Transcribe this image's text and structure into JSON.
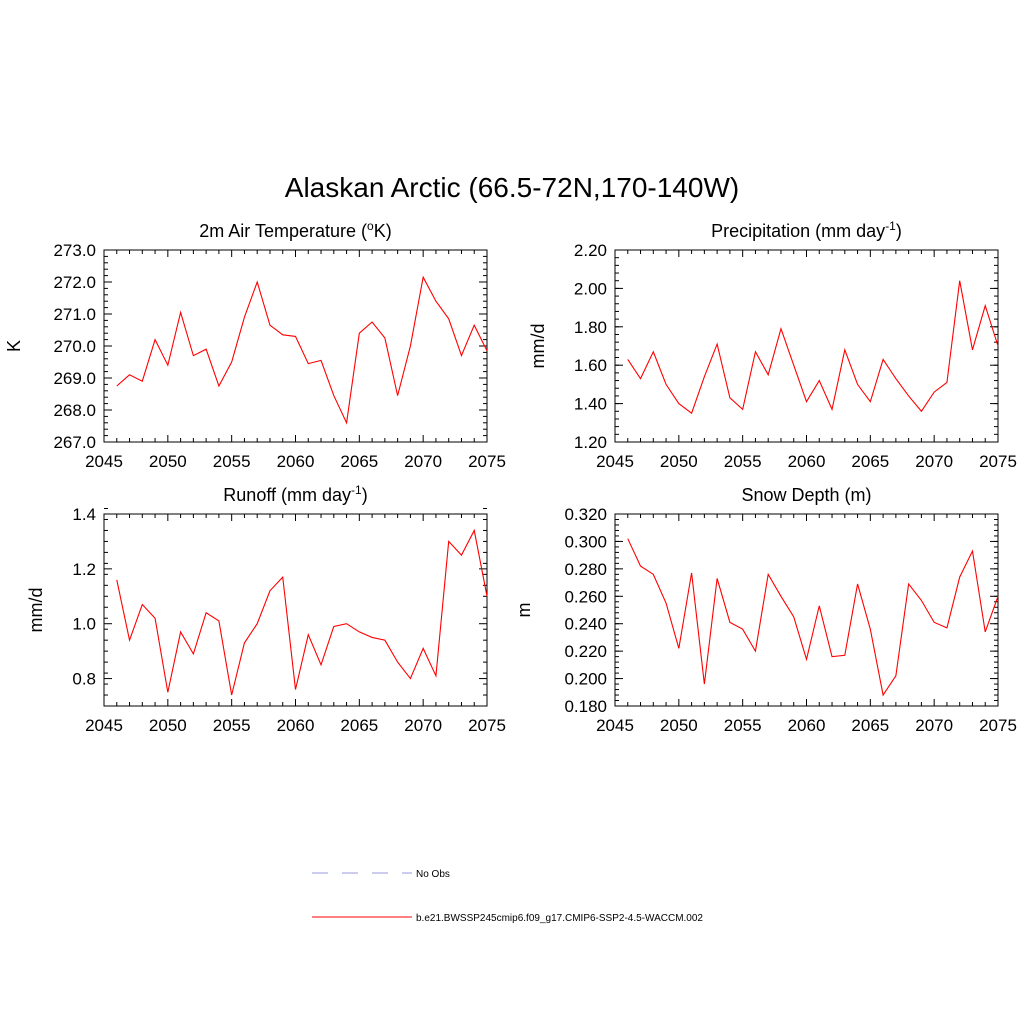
{
  "title": "Alaskan Arctic (66.5-72N,170-140W)",
  "colors": {
    "series": "#ff0000",
    "obs": "#9999dd",
    "axis": "#000000"
  },
  "legend": {
    "items": [
      {
        "label": "No Obs",
        "style": "dashed",
        "color": "#9999dd"
      },
      {
        "label": "b.e21.BWSSP245cmip6.f09_g17.CMIP6-SSP2-4.5-WACCM.002",
        "style": "solid",
        "color": "#ff0000"
      }
    ]
  },
  "chart_data": [
    {
      "type": "line",
      "title": "2m Air Temperature (",
      "title_sup": "o",
      "title_after": "K)",
      "xlabel": "",
      "ylabel": "K",
      "xlim": [
        2045,
        2075
      ],
      "ylim": [
        267.0,
        273.0
      ],
      "xticks": [
        2045,
        2050,
        2055,
        2060,
        2065,
        2070,
        2075
      ],
      "yticks": [
        "267.0",
        "268.0",
        "269.0",
        "270.0",
        "271.0",
        "272.0",
        "273.0"
      ],
      "yminor_step": 0.2,
      "series": [
        {
          "name": "b.e21.BWSSP245cmip6.f09_g17.CMIP6-SSP2-4.5-WACCM.002",
          "x": [
            2046,
            2047,
            2048,
            2049,
            2050,
            2051,
            2052,
            2053,
            2054,
            2055,
            2056,
            2057,
            2058,
            2059,
            2060,
            2061,
            2062,
            2063,
            2064,
            2065,
            2066,
            2067,
            2068,
            2069,
            2070,
            2071,
            2072,
            2073,
            2074,
            2075
          ],
          "values": [
            268.75,
            269.1,
            268.9,
            270.2,
            269.4,
            271.05,
            269.7,
            269.9,
            268.75,
            269.5,
            270.9,
            272.0,
            270.65,
            270.35,
            270.3,
            269.45,
            269.55,
            268.45,
            267.6,
            270.4,
            270.75,
            270.25,
            268.45,
            270.0,
            272.15,
            271.4,
            270.85,
            269.7,
            270.65,
            269.85
          ]
        }
      ]
    },
    {
      "type": "line",
      "title": "Precipitation (mm day",
      "title_sup": "-1",
      "title_after": ")",
      "xlabel": "",
      "ylabel": "mm/d",
      "xlim": [
        2045,
        2075
      ],
      "ylim": [
        1.2,
        2.2
      ],
      "xticks": [
        2045,
        2050,
        2055,
        2060,
        2065,
        2070,
        2075
      ],
      "yticks": [
        "1.20",
        "1.40",
        "1.60",
        "1.80",
        "2.00",
        "2.20"
      ],
      "yminor_step": 0.04,
      "series": [
        {
          "name": "b.e21.BWSSP245cmip6.f09_g17.CMIP6-SSP2-4.5-WACCM.002",
          "x": [
            2046,
            2047,
            2048,
            2049,
            2050,
            2051,
            2052,
            2053,
            2054,
            2055,
            2056,
            2057,
            2058,
            2059,
            2060,
            2061,
            2062,
            2063,
            2064,
            2065,
            2066,
            2067,
            2068,
            2069,
            2070,
            2071,
            2072,
            2073,
            2074,
            2075
          ],
          "values": [
            1.63,
            1.53,
            1.67,
            1.5,
            1.4,
            1.35,
            1.54,
            1.71,
            1.43,
            1.37,
            1.67,
            1.55,
            1.79,
            1.6,
            1.41,
            1.52,
            1.37,
            1.68,
            1.5,
            1.41,
            1.63,
            1.53,
            1.44,
            1.36,
            1.46,
            1.51,
            2.04,
            1.68,
            1.91,
            1.7
          ]
        }
      ]
    },
    {
      "type": "line",
      "title": "Runoff (mm day",
      "title_sup": "-1",
      "title_after": ")",
      "xlabel": "",
      "ylabel": "mm/d",
      "xlim": [
        2045,
        2075
      ],
      "ylim": [
        0.7,
        1.4
      ],
      "xticks": [
        2045,
        2050,
        2055,
        2060,
        2065,
        2070,
        2075
      ],
      "yticks": [
        "0.8",
        "1.0",
        "1.2",
        "1.4"
      ],
      "ytick_values": [
        0.8,
        1.0,
        1.2,
        1.4
      ],
      "yminor_step": 0.04,
      "series": [
        {
          "name": "b.e21.BWSSP245cmip6.f09_g17.CMIP6-SSP2-4.5-WACCM.002",
          "x": [
            2046,
            2047,
            2048,
            2049,
            2050,
            2051,
            2052,
            2053,
            2054,
            2055,
            2056,
            2057,
            2058,
            2059,
            2060,
            2061,
            2062,
            2063,
            2064,
            2065,
            2066,
            2067,
            2068,
            2069,
            2070,
            2071,
            2072,
            2073,
            2074,
            2075
          ],
          "values": [
            1.16,
            0.94,
            1.07,
            1.02,
            0.75,
            0.97,
            0.89,
            1.04,
            1.01,
            0.74,
            0.93,
            1.0,
            1.12,
            1.17,
            0.76,
            0.96,
            0.85,
            0.99,
            1.0,
            0.97,
            0.95,
            0.94,
            0.86,
            0.8,
            0.91,
            0.81,
            1.3,
            1.25,
            1.34,
            1.1
          ]
        }
      ]
    },
    {
      "type": "line",
      "title": "Snow Depth (m)",
      "title_sup": "",
      "title_after": "",
      "xlabel": "",
      "ylabel": "m",
      "xlim": [
        2045,
        2075
      ],
      "ylim": [
        0.18,
        0.32
      ],
      "xticks": [
        2045,
        2050,
        2055,
        2060,
        2065,
        2070,
        2075
      ],
      "yticks": [
        "0.180",
        "0.200",
        "0.220",
        "0.240",
        "0.260",
        "0.280",
        "0.300",
        "0.320"
      ],
      "yminor_step": 0.004,
      "series": [
        {
          "name": "b.e21.BWSSP245cmip6.f09_g17.CMIP6-SSP2-4.5-WACCM.002",
          "x": [
            2046,
            2047,
            2048,
            2049,
            2050,
            2051,
            2052,
            2053,
            2054,
            2055,
            2056,
            2057,
            2058,
            2059,
            2060,
            2061,
            2062,
            2063,
            2064,
            2065,
            2066,
            2067,
            2068,
            2069,
            2070,
            2071,
            2072,
            2073,
            2074,
            2075
          ],
          "values": [
            0.302,
            0.282,
            0.276,
            0.255,
            0.222,
            0.277,
            0.196,
            0.273,
            0.241,
            0.236,
            0.22,
            0.276,
            0.26,
            0.245,
            0.214,
            0.253,
            0.216,
            0.217,
            0.269,
            0.236,
            0.188,
            0.202,
            0.269,
            0.257,
            0.241,
            0.237,
            0.274,
            0.293,
            0.234,
            0.26
          ]
        }
      ]
    }
  ]
}
